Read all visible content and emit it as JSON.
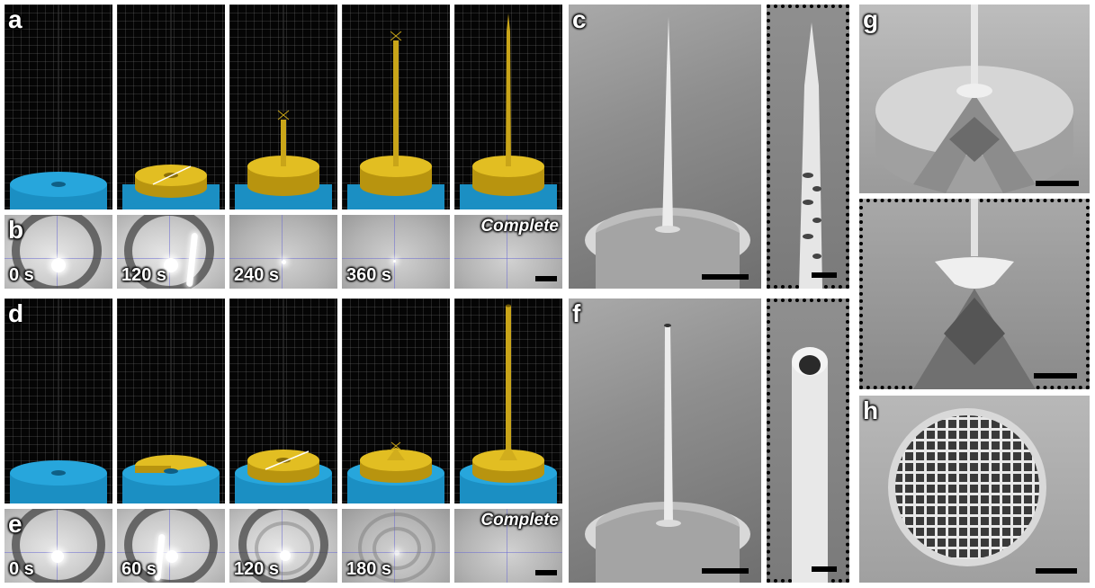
{
  "panel_labels": {
    "a": "a",
    "b": "b",
    "c": "c",
    "d": "d",
    "e": "e",
    "f": "f",
    "g": "g",
    "h": "h"
  },
  "row_b": {
    "times": [
      "0 s",
      "120 s",
      "240 s",
      "360 s"
    ],
    "complete": "Complete"
  },
  "row_e": {
    "times": [
      "0 s",
      "60 s",
      "120 s",
      "180 s"
    ],
    "complete": "Complete"
  },
  "colors": {
    "substrate_blue": "#1b8fc3",
    "printed_gold": "#d9b21a",
    "render_background": "#050505"
  }
}
